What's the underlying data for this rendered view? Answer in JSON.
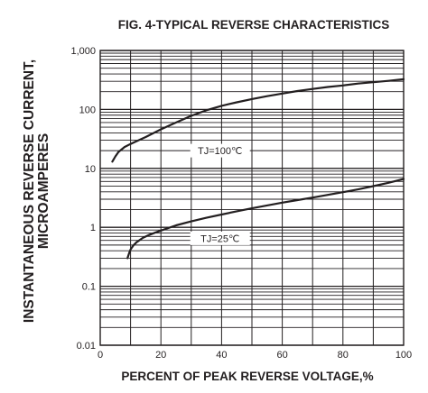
{
  "chart_data": {
    "type": "line",
    "title": "FIG. 4-TYPICAL REVERSE CHARACTERISTICS",
    "xlabel": "PERCENT OF PEAK REVERSE VOLTAGE,%",
    "ylabel": [
      "INSTANTANEOUS REVERSE CURRENT,",
      "MICROAMPERES"
    ],
    "xlim": [
      0,
      100
    ],
    "ylim": [
      0.01,
      1000
    ],
    "y_scale": "log",
    "grid": true,
    "x_ticks": [
      0,
      20,
      40,
      60,
      80,
      100
    ],
    "y_ticks": [
      0.01,
      0.1,
      1,
      10,
      100,
      1000
    ],
    "x_tick_labels": [
      "0",
      "20",
      "40",
      "60",
      "80",
      "100"
    ],
    "y_tick_labels": [
      "0.01",
      "0.1",
      "1",
      "10",
      "100",
      "1,000"
    ],
    "series": [
      {
        "name": "TJ=100℃",
        "x": [
          4,
          5,
          6,
          8,
          10,
          12,
          15,
          20,
          25,
          30,
          35,
          40,
          45,
          50,
          55,
          60,
          65,
          70,
          75,
          80,
          85,
          90,
          95,
          100
        ],
        "y": [
          13,
          16,
          19,
          23,
          26,
          29,
          34,
          46,
          60,
          78,
          97,
          115,
          132,
          150,
          168,
          186,
          205,
          222,
          240,
          255,
          275,
          290,
          305,
          325
        ]
      },
      {
        "name": "TJ=25℃",
        "x": [
          9,
          9.5,
          10,
          11,
          12,
          14,
          16,
          18,
          20,
          25,
          30,
          35,
          40,
          45,
          50,
          55,
          60,
          65,
          70,
          75,
          80,
          85,
          90,
          95,
          100
        ],
        "y": [
          0.3,
          0.36,
          0.42,
          0.5,
          0.56,
          0.66,
          0.74,
          0.81,
          0.88,
          1.08,
          1.26,
          1.45,
          1.65,
          1.87,
          2.1,
          2.35,
          2.62,
          2.9,
          3.2,
          3.55,
          3.95,
          4.4,
          5.0,
          5.7,
          6.6
        ]
      }
    ],
    "annotations": [
      {
        "text": "TJ=100℃",
        "x": 39.5,
        "y": 20
      },
      {
        "text": "TJ=25℃",
        "x": 39.5,
        "y": 0.65
      }
    ]
  }
}
